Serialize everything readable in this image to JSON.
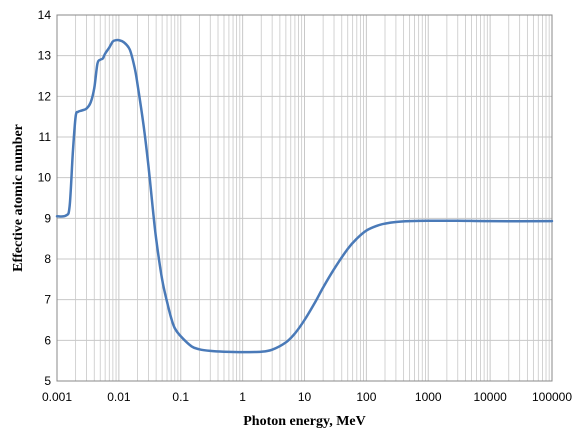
{
  "chart_data": {
    "type": "line",
    "title": "",
    "xlabel": "Photon energy, MeV",
    "ylabel": "Effective atomic number",
    "x_scale": "log",
    "xlim": [
      0.001,
      100000
    ],
    "ylim": [
      5,
      14
    ],
    "x_ticks": [
      "0.001",
      "0.01",
      "0.1",
      "1",
      "10",
      "100",
      "1000",
      "10000",
      "100000"
    ],
    "y_ticks": [
      "5",
      "6",
      "7",
      "8",
      "9",
      "10",
      "11",
      "12",
      "13",
      "14"
    ],
    "grid": true,
    "legend": "none",
    "series": [
      {
        "color": "#4a7ab8",
        "points": [
          [
            0.001,
            9.05
          ],
          [
            0.0014,
            9.07
          ],
          [
            0.0016,
            9.3
          ],
          [
            0.0018,
            10.6
          ],
          [
            0.002,
            11.5
          ],
          [
            0.0022,
            11.62
          ],
          [
            0.0025,
            11.65
          ],
          [
            0.003,
            11.7
          ],
          [
            0.0035,
            11.85
          ],
          [
            0.004,
            12.2
          ],
          [
            0.0045,
            12.8
          ],
          [
            0.005,
            12.9
          ],
          [
            0.0055,
            12.93
          ],
          [
            0.006,
            13.05
          ],
          [
            0.007,
            13.2
          ],
          [
            0.008,
            13.35
          ],
          [
            0.009,
            13.38
          ],
          [
            0.01,
            13.38
          ],
          [
            0.012,
            13.33
          ],
          [
            0.015,
            13.15
          ],
          [
            0.018,
            12.7
          ],
          [
            0.02,
            12.3
          ],
          [
            0.025,
            11.3
          ],
          [
            0.03,
            10.3
          ],
          [
            0.035,
            9.3
          ],
          [
            0.04,
            8.5
          ],
          [
            0.05,
            7.5
          ],
          [
            0.06,
            6.95
          ],
          [
            0.07,
            6.55
          ],
          [
            0.08,
            6.3
          ],
          [
            0.1,
            6.1
          ],
          [
            0.15,
            5.85
          ],
          [
            0.2,
            5.78
          ],
          [
            0.3,
            5.74
          ],
          [
            0.5,
            5.72
          ],
          [
            1,
            5.71
          ],
          [
            2,
            5.72
          ],
          [
            3,
            5.77
          ],
          [
            5,
            5.95
          ],
          [
            7,
            6.17
          ],
          [
            10,
            6.5
          ],
          [
            15,
            6.95
          ],
          [
            20,
            7.3
          ],
          [
            30,
            7.75
          ],
          [
            50,
            8.25
          ],
          [
            70,
            8.5
          ],
          [
            100,
            8.7
          ],
          [
            150,
            8.82
          ],
          [
            200,
            8.87
          ],
          [
            300,
            8.91
          ],
          [
            500,
            8.93
          ],
          [
            1000,
            8.94
          ],
          [
            3000,
            8.94
          ],
          [
            10000,
            8.93
          ],
          [
            100000,
            8.93
          ]
        ]
      }
    ]
  },
  "colors": {
    "grid": "#c8c8c8",
    "axis": "#888888",
    "line": "#4a7ab8"
  }
}
